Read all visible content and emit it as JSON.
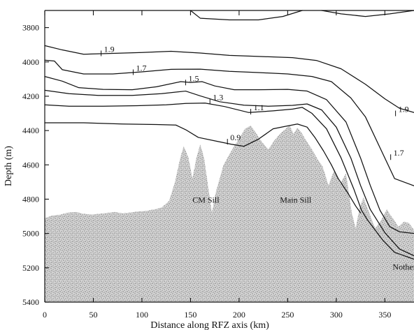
{
  "chart_data": {
    "type": "line",
    "xlabel": "Distance along RFZ axis (km)",
    "ylabel": "Depth (m)",
    "xlim": [
      0,
      380
    ],
    "ylim": [
      5400,
      3700
    ],
    "x_ticks": [
      "0",
      "50",
      "100",
      "150",
      "200",
      "250",
      "300",
      "350"
    ],
    "y_ticks": [
      "3800",
      "4000",
      "4200",
      "4400",
      "4600",
      "4800",
      "5000",
      "5200",
      "5400"
    ],
    "top_ticks": [
      0,
      50,
      100,
      150,
      200,
      250,
      300,
      350
    ],
    "contour_labels": [
      {
        "text": "1.9",
        "x": 58,
        "depth": 3950
      },
      {
        "text": "1.7",
        "x": 91,
        "depth": 4060
      },
      {
        "text": "1.5",
        "x": 145,
        "depth": 4120
      },
      {
        "text": "1.3",
        "x": 170,
        "depth": 4230
      },
      {
        "text": "1.1",
        "x": 212,
        "depth": 4290
      },
      {
        "text": "0.9",
        "x": 188,
        "depth": 4465
      },
      {
        "text": "1.9",
        "x": 361,
        "depth": 4300
      },
      {
        "text": "1.7",
        "x": 356,
        "depth": 4555
      }
    ],
    "contours": [
      {
        "points": [
          [
            0,
            3905
          ],
          [
            18,
            3930
          ],
          [
            40,
            3955
          ],
          [
            70,
            3950
          ],
          [
            100,
            3945
          ],
          [
            130,
            3938
          ],
          [
            160,
            3948
          ],
          [
            190,
            3962
          ],
          [
            220,
            3968
          ],
          [
            255,
            3975
          ],
          [
            280,
            3992
          ],
          [
            305,
            4040
          ],
          [
            330,
            4130
          ],
          [
            350,
            4215
          ],
          [
            365,
            4270
          ],
          [
            380,
            4295
          ]
        ]
      },
      {
        "points": [
          [
            0,
            3990
          ],
          [
            10,
            3995
          ],
          [
            18,
            4045
          ],
          [
            40,
            4070
          ],
          [
            70,
            4070
          ],
          [
            100,
            4058
          ],
          [
            130,
            4043
          ],
          [
            160,
            4042
          ],
          [
            190,
            4055
          ],
          [
            220,
            4062
          ],
          [
            250,
            4070
          ],
          [
            275,
            4085
          ],
          [
            295,
            4115
          ],
          [
            315,
            4210
          ],
          [
            330,
            4320
          ],
          [
            345,
            4500
          ],
          [
            360,
            4680
          ],
          [
            380,
            4722
          ]
        ]
      },
      {
        "points": [
          [
            0,
            4085
          ],
          [
            18,
            4112
          ],
          [
            35,
            4150
          ],
          [
            60,
            4160
          ],
          [
            90,
            4162
          ],
          [
            115,
            4145
          ],
          [
            140,
            4115
          ],
          [
            150,
            4120
          ],
          [
            162,
            4115
          ],
          [
            175,
            4140
          ],
          [
            195,
            4162
          ],
          [
            220,
            4162
          ],
          [
            250,
            4160
          ],
          [
            270,
            4170
          ],
          [
            290,
            4220
          ],
          [
            310,
            4350
          ],
          [
            325,
            4560
          ],
          [
            335,
            4720
          ],
          [
            345,
            4865
          ],
          [
            355,
            4960
          ],
          [
            365,
            4990
          ],
          [
            380,
            5000
          ]
        ]
      },
      {
        "points": [
          [
            0,
            4165
          ],
          [
            25,
            4185
          ],
          [
            55,
            4195
          ],
          [
            90,
            4195
          ],
          [
            120,
            4185
          ],
          [
            145,
            4170
          ],
          [
            160,
            4198
          ],
          [
            180,
            4232
          ],
          [
            205,
            4252
          ],
          [
            230,
            4258
          ],
          [
            255,
            4253
          ],
          [
            270,
            4245
          ],
          [
            285,
            4280
          ],
          [
            300,
            4380
          ],
          [
            315,
            4560
          ],
          [
            325,
            4720
          ],
          [
            335,
            4860
          ],
          [
            350,
            4995
          ],
          [
            365,
            5090
          ],
          [
            380,
            5130
          ]
        ]
      },
      {
        "points": [
          [
            0,
            4250
          ],
          [
            25,
            4258
          ],
          [
            60,
            4258
          ],
          [
            95,
            4255
          ],
          [
            125,
            4250
          ],
          [
            145,
            4242
          ],
          [
            165,
            4240
          ],
          [
            185,
            4260
          ],
          [
            210,
            4295
          ],
          [
            235,
            4285
          ],
          [
            255,
            4275
          ],
          [
            265,
            4265
          ],
          [
            275,
            4300
          ],
          [
            290,
            4390
          ],
          [
            305,
            4560
          ],
          [
            318,
            4740
          ],
          [
            326,
            4865
          ],
          [
            332,
            4920
          ],
          [
            338,
            4965
          ],
          [
            348,
            5040
          ],
          [
            360,
            5110
          ],
          [
            380,
            5150
          ]
        ]
      },
      {
        "points": [
          [
            0,
            4355
          ],
          [
            40,
            4355
          ],
          [
            80,
            4362
          ],
          [
            115,
            4365
          ],
          [
            135,
            4368
          ],
          [
            145,
            4395
          ],
          [
            158,
            4440
          ],
          [
            175,
            4460
          ],
          [
            192,
            4480
          ],
          [
            205,
            4492
          ],
          [
            220,
            4450
          ],
          [
            235,
            4390
          ],
          [
            248,
            4375
          ],
          [
            260,
            4362
          ],
          [
            270,
            4380
          ],
          [
            278,
            4440
          ],
          [
            287,
            4520
          ],
          [
            295,
            4600
          ],
          [
            302,
            4680
          ],
          [
            312,
            4765
          ],
          [
            320,
            4840
          ],
          [
            325,
            4880
          ]
        ]
      }
    ],
    "topography": [
      [
        0,
        4910
      ],
      [
        8,
        4895
      ],
      [
        16,
        4890
      ],
      [
        24,
        4878
      ],
      [
        32,
        4875
      ],
      [
        40,
        4885
      ],
      [
        48,
        4890
      ],
      [
        56,
        4885
      ],
      [
        64,
        4880
      ],
      [
        72,
        4875
      ],
      [
        80,
        4882
      ],
      [
        88,
        4878
      ],
      [
        96,
        4872
      ],
      [
        104,
        4868
      ],
      [
        112,
        4860
      ],
      [
        120,
        4850
      ],
      [
        128,
        4810
      ],
      [
        134,
        4700
      ],
      [
        139,
        4570
      ],
      [
        143,
        4490
      ],
      [
        148,
        4560
      ],
      [
        152,
        4680
      ],
      [
        156,
        4560
      ],
      [
        160,
        4480
      ],
      [
        164,
        4560
      ],
      [
        168,
        4720
      ],
      [
        172,
        4880
      ],
      [
        176,
        4760
      ],
      [
        180,
        4680
      ],
      [
        184,
        4600
      ],
      [
        188,
        4560
      ],
      [
        192,
        4520
      ],
      [
        196,
        4480
      ],
      [
        200,
        4450
      ],
      [
        206,
        4390
      ],
      [
        212,
        4370
      ],
      [
        218,
        4420
      ],
      [
        224,
        4470
      ],
      [
        230,
        4510
      ],
      [
        236,
        4460
      ],
      [
        242,
        4420
      ],
      [
        248,
        4390
      ],
      [
        252,
        4370
      ],
      [
        256,
        4420
      ],
      [
        260,
        4385
      ],
      [
        264,
        4410
      ],
      [
        268,
        4450
      ],
      [
        274,
        4500
      ],
      [
        280,
        4560
      ],
      [
        286,
        4610
      ],
      [
        292,
        4720
      ],
      [
        298,
        4630
      ],
      [
        304,
        4710
      ],
      [
        310,
        4650
      ],
      [
        316,
        4880
      ],
      [
        320,
        4970
      ],
      [
        324,
        4850
      ],
      [
        328,
        4790
      ],
      [
        334,
        4880
      ],
      [
        340,
        4970
      ],
      [
        346,
        4925
      ],
      [
        352,
        4860
      ],
      [
        358,
        4910
      ],
      [
        364,
        4960
      ],
      [
        370,
        4930
      ],
      [
        375,
        4940
      ],
      [
        380,
        4980
      ]
    ],
    "region_labels": [
      {
        "text": "CM Sill",
        "x": 152,
        "depth": 4820
      },
      {
        "text": "Main Sill",
        "x": 242,
        "depth": 4820
      },
      {
        "text": "Nothern exit",
        "x": 358,
        "depth": 5210
      }
    ],
    "grid": false,
    "colors": {
      "axis": "#111111",
      "contour": "#111111",
      "topography": "#9a9a9a"
    }
  }
}
